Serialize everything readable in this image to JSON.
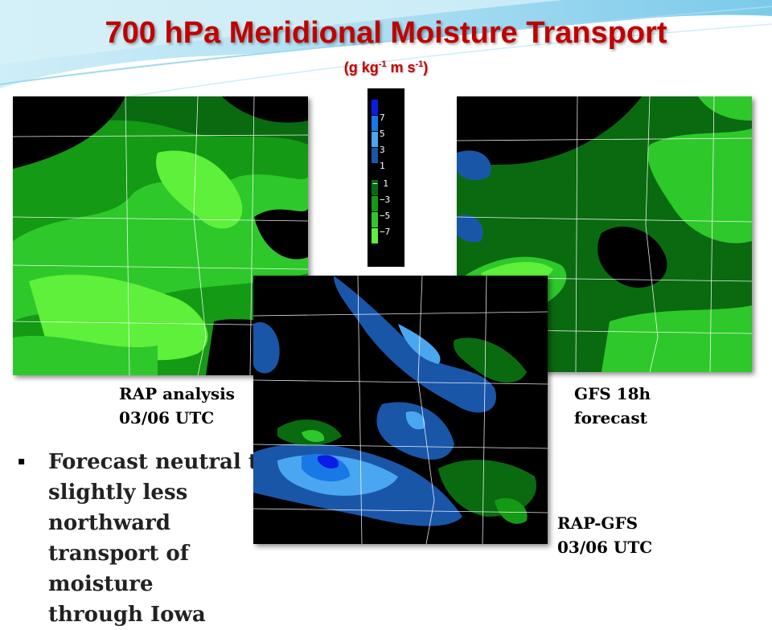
{
  "title": "700 hPa Meridional Moisture Transport",
  "units": {
    "prefix": "(g kg",
    "exp1": "-1",
    "mid": " m s",
    "exp2": "-1",
    "suffix": ")"
  },
  "colorbar": {
    "ticks": [
      "7",
      "5",
      "3",
      "1",
      "− 1",
      "−3",
      "−5",
      "−7"
    ],
    "colors": [
      "#0a1ce6",
      "#1878e6",
      "#4aa6f0",
      "#1a56a8",
      "#0a6a10",
      "#149a14",
      "#2ec82a",
      "#5ef03a"
    ]
  },
  "captions": {
    "rap_line1": "RAP analysis",
    "rap_line2": "03/06 UTC",
    "gfs_line1": "GFS 18h",
    "gfs_line2": "forecast",
    "diff_line1": "RAP-GFS",
    "diff_line2": "03/06 UTC"
  },
  "bullet": {
    "marker": "▪",
    "lines": [
      "Forecast neutral to",
      "slightly less northward",
      "transport  of moisture",
      "through Iowa"
    ]
  }
}
